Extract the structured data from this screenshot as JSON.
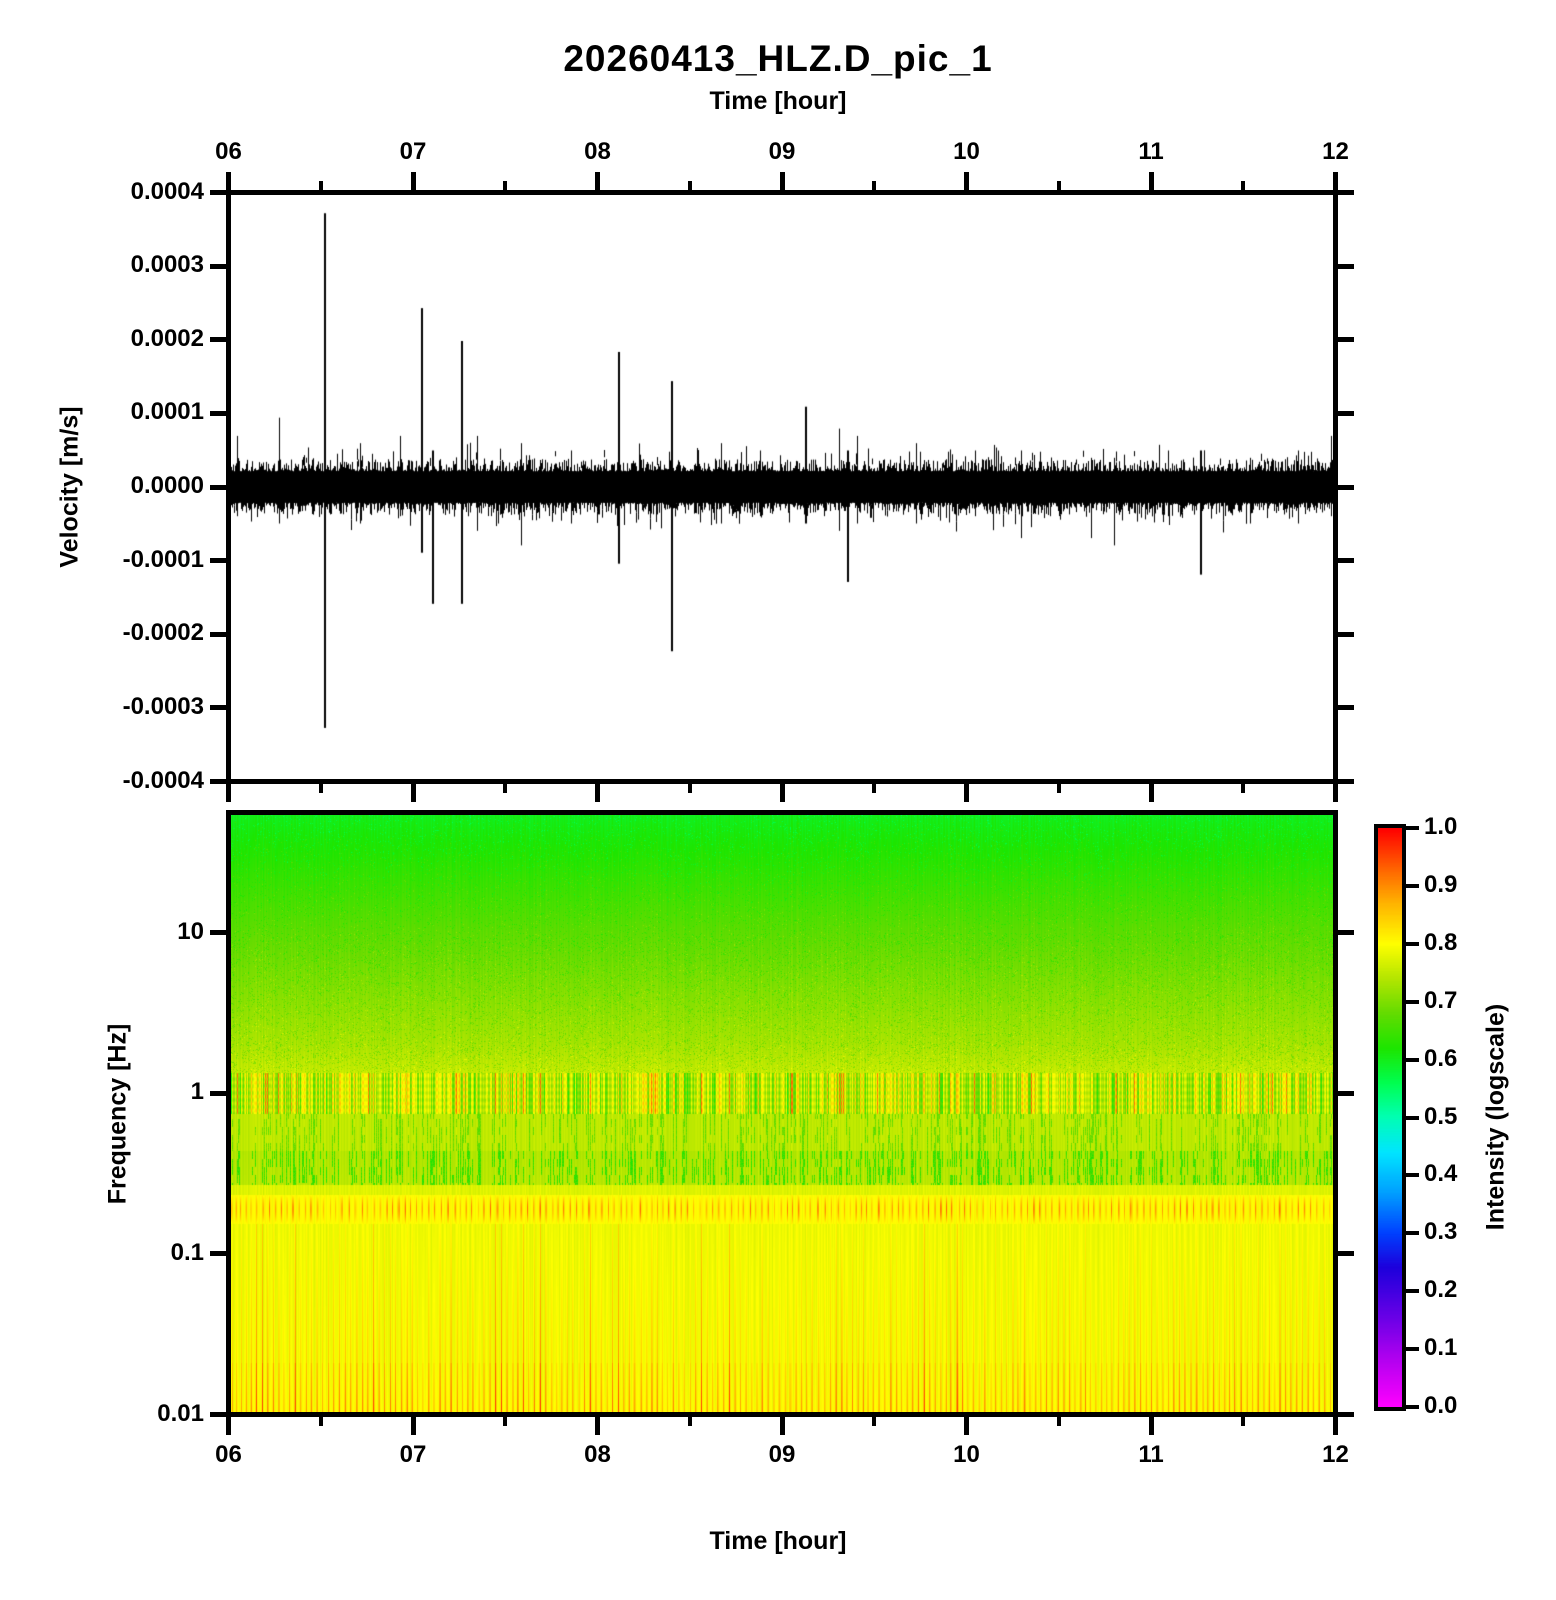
{
  "figure": {
    "title": "20260413_HLZ.D_pic_1",
    "background": "#ffffff",
    "text_color": "#000000"
  },
  "top_axis": {
    "label": "Time [hour]"
  },
  "bottom_axis": {
    "label": "Time [hour]"
  },
  "chart_data": [
    {
      "type": "line",
      "name": "seismogram-waveform",
      "xlabel": "Time [hour]",
      "ylabel": "Velocity [m/s]",
      "xlim": [
        6,
        12
      ],
      "ylim": [
        -0.0004,
        0.0004
      ],
      "x_ticks": [
        {
          "v": 6,
          "label": "06"
        },
        {
          "v": 7,
          "label": "07"
        },
        {
          "v": 8,
          "label": "08"
        },
        {
          "v": 9,
          "label": "09"
        },
        {
          "v": 10,
          "label": "10"
        },
        {
          "v": 11,
          "label": "11"
        },
        {
          "v": 12,
          "label": "12"
        }
      ],
      "x_minor_ticks": [
        6.5,
        7.5,
        8.5,
        9.5,
        10.5,
        11.5
      ],
      "y_ticks": [
        {
          "v": 0.0004,
          "label": "0.0004"
        },
        {
          "v": 0.0003,
          "label": "0.0003"
        },
        {
          "v": 0.0002,
          "label": "0.0002"
        },
        {
          "v": 0.0001,
          "label": "0.0001"
        },
        {
          "v": 0.0,
          "label": "0.0000"
        },
        {
          "v": -0.0001,
          "label": "-0.0001"
        },
        {
          "v": -0.0002,
          "label": "-0.0002"
        },
        {
          "v": -0.0003,
          "label": "-0.0003"
        },
        {
          "v": -0.0004,
          "label": "-0.0004"
        }
      ],
      "line_color": "#000000",
      "noise_band_halfwidth": 3e-05,
      "spikes_format": "[hour, peak_up_mps, peak_down_mps]",
      "spikes": [
        [
          6.03,
          7e-05,
          -4e-05
        ],
        [
          6.26,
          9.5e-05,
          -5e-05
        ],
        [
          6.51,
          0.000375,
          -0.00033
        ],
        [
          6.7,
          6e-05,
          -5e-05
        ],
        [
          6.92,
          7e-05,
          -4e-05
        ],
        [
          7.04,
          0.000245,
          -9e-05
        ],
        [
          7.1,
          5e-05,
          -0.00016
        ],
        [
          7.26,
          0.0002,
          -0.00016
        ],
        [
          7.34,
          7e-05,
          -6e-05
        ],
        [
          7.58,
          6e-05,
          -8e-05
        ],
        [
          7.85,
          5e-05,
          -5e-05
        ],
        [
          8.11,
          0.000185,
          -0.000105
        ],
        [
          8.4,
          0.000145,
          -0.000225
        ],
        [
          8.67,
          6e-05,
          -5e-05
        ],
        [
          8.88,
          5e-05,
          -4e-05
        ],
        [
          9.13,
          0.00011,
          -5e-05
        ],
        [
          9.31,
          8e-05,
          -6e-05
        ],
        [
          9.36,
          5e-05,
          -0.00013
        ],
        [
          9.41,
          7e-05,
          -5e-05
        ],
        [
          9.73,
          6e-05,
          -5e-05
        ],
        [
          10.05,
          5e-05,
          -4e-05
        ],
        [
          10.3,
          5e-05,
          -7e-05
        ],
        [
          10.68,
          4e-05,
          -7e-05
        ],
        [
          10.81,
          4e-05,
          -8e-05
        ],
        [
          11.1,
          5e-05,
          -4e-05
        ],
        [
          11.28,
          5e-05,
          -0.00012
        ],
        [
          11.55,
          4e-05,
          -5e-05
        ],
        [
          11.81,
          5e-05,
          -5e-05
        ],
        [
          11.99,
          7e-05,
          -4e-05
        ]
      ]
    },
    {
      "type": "heatmap",
      "name": "spectrogram",
      "xlabel": "Time [hour]",
      "ylabel": "Frequency [Hz]",
      "xlim": [
        6,
        12
      ],
      "ylim": [
        0.01,
        50
      ],
      "y_scale": "log",
      "x_ticks": [
        {
          "v": 6,
          "label": "06"
        },
        {
          "v": 7,
          "label": "07"
        },
        {
          "v": 8,
          "label": "08"
        },
        {
          "v": 9,
          "label": "09"
        },
        {
          "v": 10,
          "label": "10"
        },
        {
          "v": 11,
          "label": "11"
        },
        {
          "v": 12,
          "label": "12"
        }
      ],
      "x_minor_ticks": [
        6.5,
        7.5,
        8.5,
        9.5,
        10.5,
        11.5
      ],
      "y_ticks": [
        {
          "v": 10,
          "label": "10"
        },
        {
          "v": 1,
          "label": "1"
        },
        {
          "v": 0.1,
          "label": "0.1"
        },
        {
          "v": 0.01,
          "label": "0.01"
        }
      ],
      "bands_format": "frequency bands, intensity 0..1 mapped through colormap",
      "bands": [
        {
          "f_hi": 54,
          "f_lo": 10,
          "i_hi": 0.6,
          "i_lo": 0.675,
          "tex": "speckle",
          "density": 0.05,
          "delta": -0.05
        },
        {
          "f_hi": 10,
          "f_lo": 2.1,
          "i_hi": 0.675,
          "i_lo": 0.73,
          "tex": "speckle",
          "density": 0.1,
          "delta": -0.055
        },
        {
          "f_hi": 2.1,
          "f_lo": 1.35,
          "i_hi": 0.73,
          "i_lo": 0.755,
          "tex": "speckle",
          "density": 0.14,
          "delta": -0.06
        },
        {
          "f_hi": 1.35,
          "f_lo": 0.75,
          "i_hi": 0.765,
          "i_lo": 0.765,
          "tex": "streaks",
          "streak": 0.09,
          "dip": -0.07,
          "dip_density": 0.18,
          "bright": 0.05
        },
        {
          "f_hi": 0.75,
          "f_lo": 0.44,
          "i_hi": 0.75,
          "i_lo": 0.75,
          "tex": "dashes",
          "density": 0.3,
          "delta": -0.085
        },
        {
          "f_hi": 0.44,
          "f_lo": 0.27,
          "i_hi": 0.74,
          "i_lo": 0.745,
          "tex": "dashes",
          "density": 0.42,
          "delta": -0.125
        },
        {
          "f_hi": 0.27,
          "f_lo": 0.235,
          "i_hi": 0.775,
          "i_lo": 0.775,
          "tex": "plain"
        },
        {
          "f_hi": 0.235,
          "f_lo": 0.155,
          "i_hi": 0.8,
          "i_lo": 0.8,
          "tex": "stripes",
          "stripe": 0.13
        },
        {
          "f_hi": 0.155,
          "f_lo": 0.021,
          "i_hi": 0.785,
          "i_lo": 0.79,
          "tex": "gradstripes",
          "stripe_hi": 0.02,
          "stripe_lo": 0.075
        },
        {
          "f_hi": 0.021,
          "f_lo": 0.0095,
          "i_hi": 0.79,
          "i_lo": 0.8,
          "tex": "gradstripes",
          "stripe_hi": 0.1,
          "stripe_lo": 0.13
        }
      ],
      "colorbar": {
        "label": "Intensity (logscale)",
        "range": [
          0,
          1
        ],
        "ticks": [
          {
            "v": 1.0,
            "label": "1.0"
          },
          {
            "v": 0.9,
            "label": "0.9"
          },
          {
            "v": 0.8,
            "label": "0.8"
          },
          {
            "v": 0.7,
            "label": "0.7"
          },
          {
            "v": 0.6,
            "label": "0.6"
          },
          {
            "v": 0.5,
            "label": "0.5"
          },
          {
            "v": 0.4,
            "label": "0.4"
          },
          {
            "v": 0.3,
            "label": "0.3"
          },
          {
            "v": 0.2,
            "label": "0.2"
          },
          {
            "v": 0.1,
            "label": "0.1"
          },
          {
            "v": 0.0,
            "label": "0.0"
          }
        ],
        "colormap": [
          [
            0.0,
            "#ff00ff"
          ],
          [
            0.08,
            "#b400f0"
          ],
          [
            0.16,
            "#6400e6"
          ],
          [
            0.24,
            "#1e00dc"
          ],
          [
            0.3,
            "#0041ff"
          ],
          [
            0.37,
            "#00a0ff"
          ],
          [
            0.44,
            "#00e6ff"
          ],
          [
            0.5,
            "#00ffb4"
          ],
          [
            0.56,
            "#00ff50"
          ],
          [
            0.62,
            "#1ee600"
          ],
          [
            0.68,
            "#64dc00"
          ],
          [
            0.74,
            "#b4e600"
          ],
          [
            0.8,
            "#ffff00"
          ],
          [
            0.87,
            "#ffb400"
          ],
          [
            0.93,
            "#ff6400"
          ],
          [
            1.0,
            "#ff0000"
          ]
        ]
      }
    }
  ]
}
